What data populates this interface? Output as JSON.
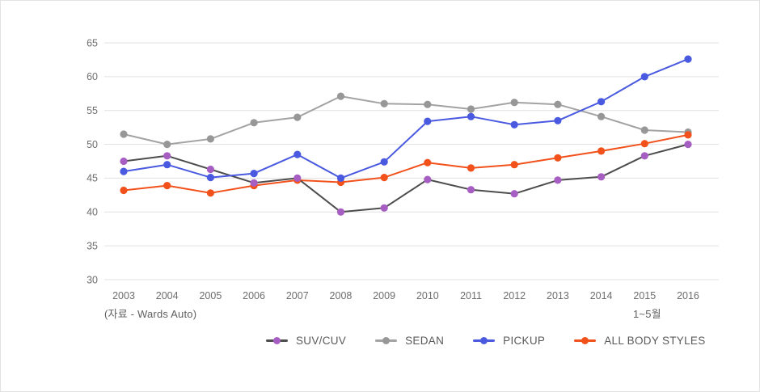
{
  "chart_data": {
    "type": "line",
    "title": "",
    "x_labels": [
      "2003",
      "2004",
      "2005",
      "2006",
      "2007",
      "2008",
      "2009",
      "2010",
      "2011",
      "2012",
      "2013",
      "2014",
      "2015",
      "2016"
    ],
    "ylim": [
      30,
      65
    ],
    "yticks": [
      30,
      35,
      40,
      45,
      50,
      55,
      60,
      65
    ],
    "grid": "horizontal",
    "legend_position": "bottom",
    "series": [
      {
        "name": "SUV/CUV",
        "line_color": "#4d4d4d",
        "marker_color": "#a75ec3",
        "values": [
          47.5,
          48.3,
          46.3,
          44.3,
          45.0,
          40.0,
          40.6,
          44.8,
          43.3,
          42.7,
          44.7,
          45.2,
          48.3,
          50.0
        ]
      },
      {
        "name": "SEDAN",
        "line_color": "#a3a3a3",
        "marker_color": "#979797",
        "values": [
          51.5,
          50.0,
          50.8,
          53.2,
          54.0,
          57.1,
          56.0,
          55.9,
          55.2,
          56.2,
          55.9,
          54.1,
          52.1,
          51.8
        ]
      },
      {
        "name": "PICKUP",
        "line_color": "#4a5ae0",
        "marker_color": "#4a5ae0",
        "values": [
          46.0,
          47.0,
          45.1,
          45.7,
          48.5,
          45.0,
          47.4,
          53.4,
          54.1,
          52.9,
          53.5,
          56.3,
          60.0,
          62.6
        ]
      },
      {
        "name": "ALL BODY STYLES",
        "line_color": "#f2511b",
        "marker_color": "#f2511b",
        "values": [
          43.2,
          43.9,
          42.8,
          43.9,
          44.7,
          44.4,
          45.1,
          47.3,
          46.5,
          47.0,
          48.0,
          49.0,
          50.1,
          51.4
        ]
      }
    ]
  },
  "footnotes": {
    "source": "(자료 - Wards Auto)",
    "period": "1~5월"
  },
  "colors": {
    "background": "#ffffff",
    "grid": "#e1e1e1",
    "axis_text": "#6e6e6e",
    "legend_text": "#5a5a5a"
  }
}
